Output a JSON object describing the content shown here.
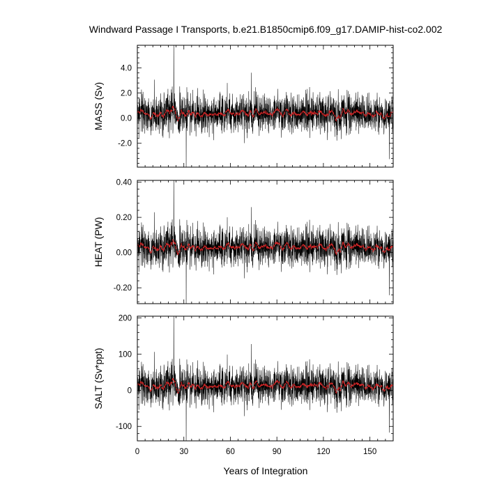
{
  "title": "Windward Passage I Transports, b.e21.B1850cmip6.f09_g17.DAMIP-hist-co2.002",
  "xlabel": "Years of Integration",
  "colors": {
    "raw_series": "#000000",
    "smoothed_series": "#d62728",
    "frame": "#000000"
  },
  "chart_data": [
    {
      "type": "line",
      "ylabel": "MASS (Sv)",
      "xlim": [
        0,
        165
      ],
      "ylim": [
        -3.9,
        5.8
      ],
      "x_ticks": [
        0,
        30,
        60,
        90,
        120,
        150
      ],
      "y_ticks": [
        -2.0,
        0.0,
        2.0,
        4.0
      ],
      "y_tick_labels": [
        "-2.0",
        "0.0",
        "2.0",
        "4.0"
      ],
      "series_summary": {
        "monthly_mean": 0.35,
        "monthly_std": 0.75,
        "smoothed_mean": 0.35,
        "max": 5.8,
        "max_at_year": 23.5,
        "min": -3.9,
        "min_at_year": 31.5
      },
      "series": [
        {
          "style": "monthly",
          "color": "#000000"
        },
        {
          "style": "smoothed",
          "color": "#d62728"
        }
      ]
    },
    {
      "type": "line",
      "ylabel": "HEAT (PW)",
      "xlim": [
        0,
        165
      ],
      "ylim": [
        -0.29,
        0.41
      ],
      "x_ticks": [
        0,
        30,
        60,
        90,
        120,
        150
      ],
      "y_ticks": [
        -0.2,
        0.0,
        0.2,
        0.4
      ],
      "y_tick_labels": [
        "-0.20",
        "0.00",
        "0.20",
        "0.40"
      ],
      "series_summary": {
        "monthly_mean": 0.03,
        "monthly_std": 0.055,
        "smoothed_mean": 0.03,
        "max": 0.41,
        "max_at_year": 23.5,
        "min": -0.29,
        "min_at_year": 31.5
      },
      "series": [
        {
          "style": "monthly",
          "color": "#000000"
        },
        {
          "style": "smoothed",
          "color": "#d62728"
        }
      ]
    },
    {
      "type": "line",
      "ylabel": "SALT (Sv*ppt)",
      "xlim": [
        0,
        165
      ],
      "ylim": [
        -140,
        205
      ],
      "x_ticks": [
        0,
        30,
        60,
        90,
        120,
        150
      ],
      "y_ticks": [
        -100,
        0,
        100,
        200
      ],
      "y_tick_labels": [
        "-100",
        "0",
        "100",
        "200"
      ],
      "x_tick_labels": [
        "0",
        "30",
        "60",
        "90",
        "120",
        "150"
      ],
      "series_summary": {
        "monthly_mean": 12,
        "monthly_std": 26,
        "smoothed_mean": 12,
        "max": 205,
        "max_at_year": 23.5,
        "min": -140,
        "min_at_year": 31.5
      },
      "series": [
        {
          "style": "monthly",
          "color": "#000000"
        },
        {
          "style": "smoothed",
          "color": "#d62728"
        }
      ]
    }
  ]
}
